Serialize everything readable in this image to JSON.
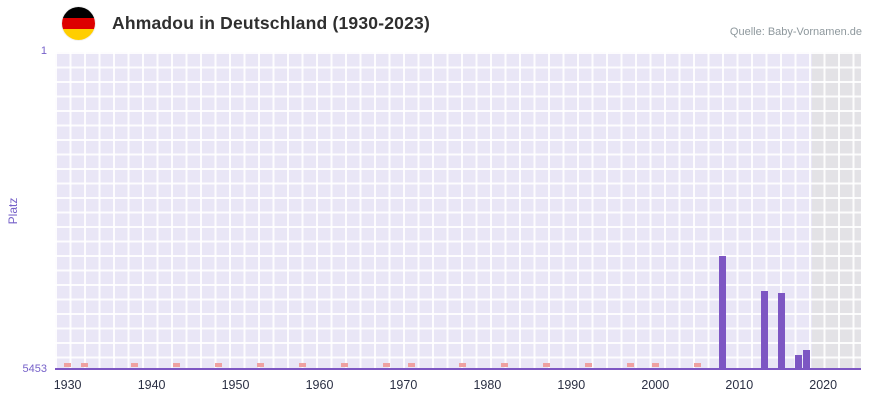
{
  "header": {
    "title": "Ahmadou in Deutschland (1930-2023)",
    "source": "Quelle: Baby-Vornamen.de",
    "flag_icon": "germany-flag-icon",
    "flag_colors": [
      "#000000",
      "#dd0000",
      "#ffce00"
    ]
  },
  "chart_data": {
    "type": "bar",
    "title": "Ahmadou in Deutschland (1930-2023)",
    "xlabel": "",
    "ylabel": "Platz",
    "y_axis": {
      "top_label": "1",
      "bottom_label": "5453",
      "min": 1,
      "max": 5453,
      "inverted": true
    },
    "x_axis": {
      "range": [
        1928.5,
        2024.5
      ],
      "tick_labels": [
        "1930",
        "1940",
        "1950",
        "1960",
        "1970",
        "1980",
        "1990",
        "2000",
        "2010",
        "2020"
      ]
    },
    "series": [
      {
        "name": "Platz",
        "points": [
          {
            "year": 2008,
            "rank": 3540
          },
          {
            "year": 2013,
            "rank": 4140
          },
          {
            "year": 2015,
            "rank": 4160
          },
          {
            "year": 2017,
            "rank": 5230
          },
          {
            "year": 2018,
            "rank": 5150
          }
        ]
      }
    ],
    "no_rank_marker_years": [
      1930,
      1932,
      1938,
      1943,
      1948,
      1953,
      1958,
      1963,
      1968,
      1971,
      1977,
      1982,
      1987,
      1992,
      1997,
      2000,
      2005
    ],
    "recent_region": {
      "start": 2018.6
    },
    "grid": true,
    "legend": "none",
    "colors": {
      "bar": "#7d56c3",
      "marker": "#efa1a1",
      "axis_line": "#7d56c3",
      "axis_text": "#7661c9",
      "tick_text": "#2b3044",
      "plot_bg": "#e9e6f6",
      "grid_line": "#ffffff",
      "recent_bg": "#e3e2e6"
    }
  }
}
